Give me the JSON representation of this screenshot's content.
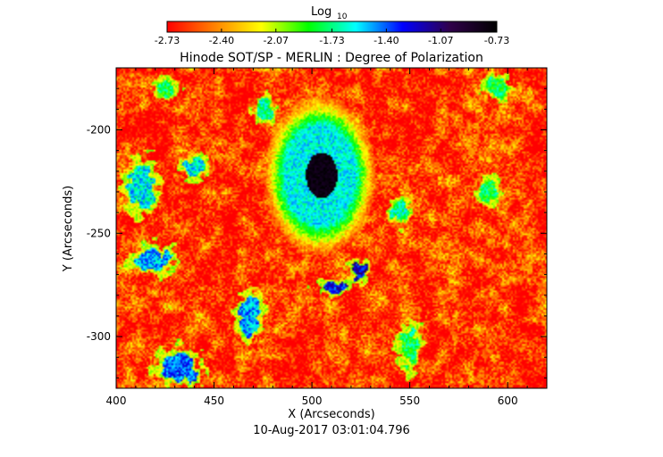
{
  "chart_data": {
    "type": "heatmap",
    "title": "Hinode SOT/SP - MERLIN : Degree of Polarization",
    "timestamp": "10-Aug-2017 03:01:04.796",
    "xlabel": "X (Arcseconds)",
    "ylabel": "Y (Arcseconds)",
    "xlim": [
      400,
      620
    ],
    "ylim": [
      -325,
      -170
    ],
    "x_ticks": [
      400,
      450,
      500,
      550,
      600
    ],
    "y_ticks": [
      -200,
      -250,
      -300
    ],
    "x_tick_labels": [
      "400",
      "450",
      "500",
      "550",
      "600"
    ],
    "y_tick_labels": [
      "-200",
      "-250",
      "-300"
    ],
    "colorbar": {
      "label": "Log",
      "label_subscript": "10",
      "range": [
        -2.73,
        -0.73
      ],
      "tick_values": [
        -2.73,
        -2.4,
        -2.07,
        -1.73,
        -1.4,
        -1.07,
        -0.73
      ],
      "tick_labels": [
        "-2.73",
        "-2.40",
        "-2.07",
        "-1.73",
        "-1.40",
        "-1.07",
        "-0.73"
      ],
      "colormap": [
        "#ff0000",
        "#ff8000",
        "#ffff00",
        "#00ff00",
        "#00ffff",
        "#0000ff",
        "#30004a",
        "#000000"
      ]
    },
    "background_level": -2.6,
    "features": [
      {
        "kind": "sunspot-umbra",
        "x": 505,
        "y": -222,
        "rx": 8,
        "ry": 11,
        "level": -0.8
      },
      {
        "kind": "penumbra",
        "x": 504,
        "y": -222,
        "rx": 18,
        "ry": 24,
        "level": -1.6
      },
      {
        "kind": "plage",
        "x": 510,
        "y": -276,
        "rx": 6,
        "ry": 3,
        "level": -1.3
      },
      {
        "kind": "plage",
        "x": 524,
        "y": -268,
        "rx": 4,
        "ry": 4,
        "level": -1.2
      },
      {
        "kind": "plage",
        "x": 432,
        "y": -315,
        "rx": 8,
        "ry": 7,
        "level": -1.4
      },
      {
        "kind": "plage",
        "x": 418,
        "y": -262,
        "rx": 8,
        "ry": 6,
        "level": -1.5
      },
      {
        "kind": "plage",
        "x": 413,
        "y": -228,
        "rx": 6,
        "ry": 10,
        "level": -1.6
      },
      {
        "kind": "plage",
        "x": 440,
        "y": -218,
        "rx": 5,
        "ry": 4,
        "level": -1.6
      },
      {
        "kind": "plage",
        "x": 468,
        "y": -290,
        "rx": 5,
        "ry": 8,
        "level": -1.5
      },
      {
        "kind": "plage",
        "x": 476,
        "y": -190,
        "rx": 4,
        "ry": 5,
        "level": -1.7
      },
      {
        "kind": "plage",
        "x": 545,
        "y": -240,
        "rx": 4,
        "ry": 5,
        "level": -1.7
      },
      {
        "kind": "plage",
        "x": 590,
        "y": -230,
        "rx": 4,
        "ry": 5,
        "level": -1.8
      },
      {
        "kind": "plage",
        "x": 595,
        "y": -180,
        "rx": 5,
        "ry": 5,
        "level": -1.8
      },
      {
        "kind": "plage",
        "x": 550,
        "y": -305,
        "rx": 5,
        "ry": 8,
        "level": -1.8
      },
      {
        "kind": "plage",
        "x": 425,
        "y": -180,
        "rx": 5,
        "ry": 4,
        "level": -1.8
      }
    ]
  }
}
